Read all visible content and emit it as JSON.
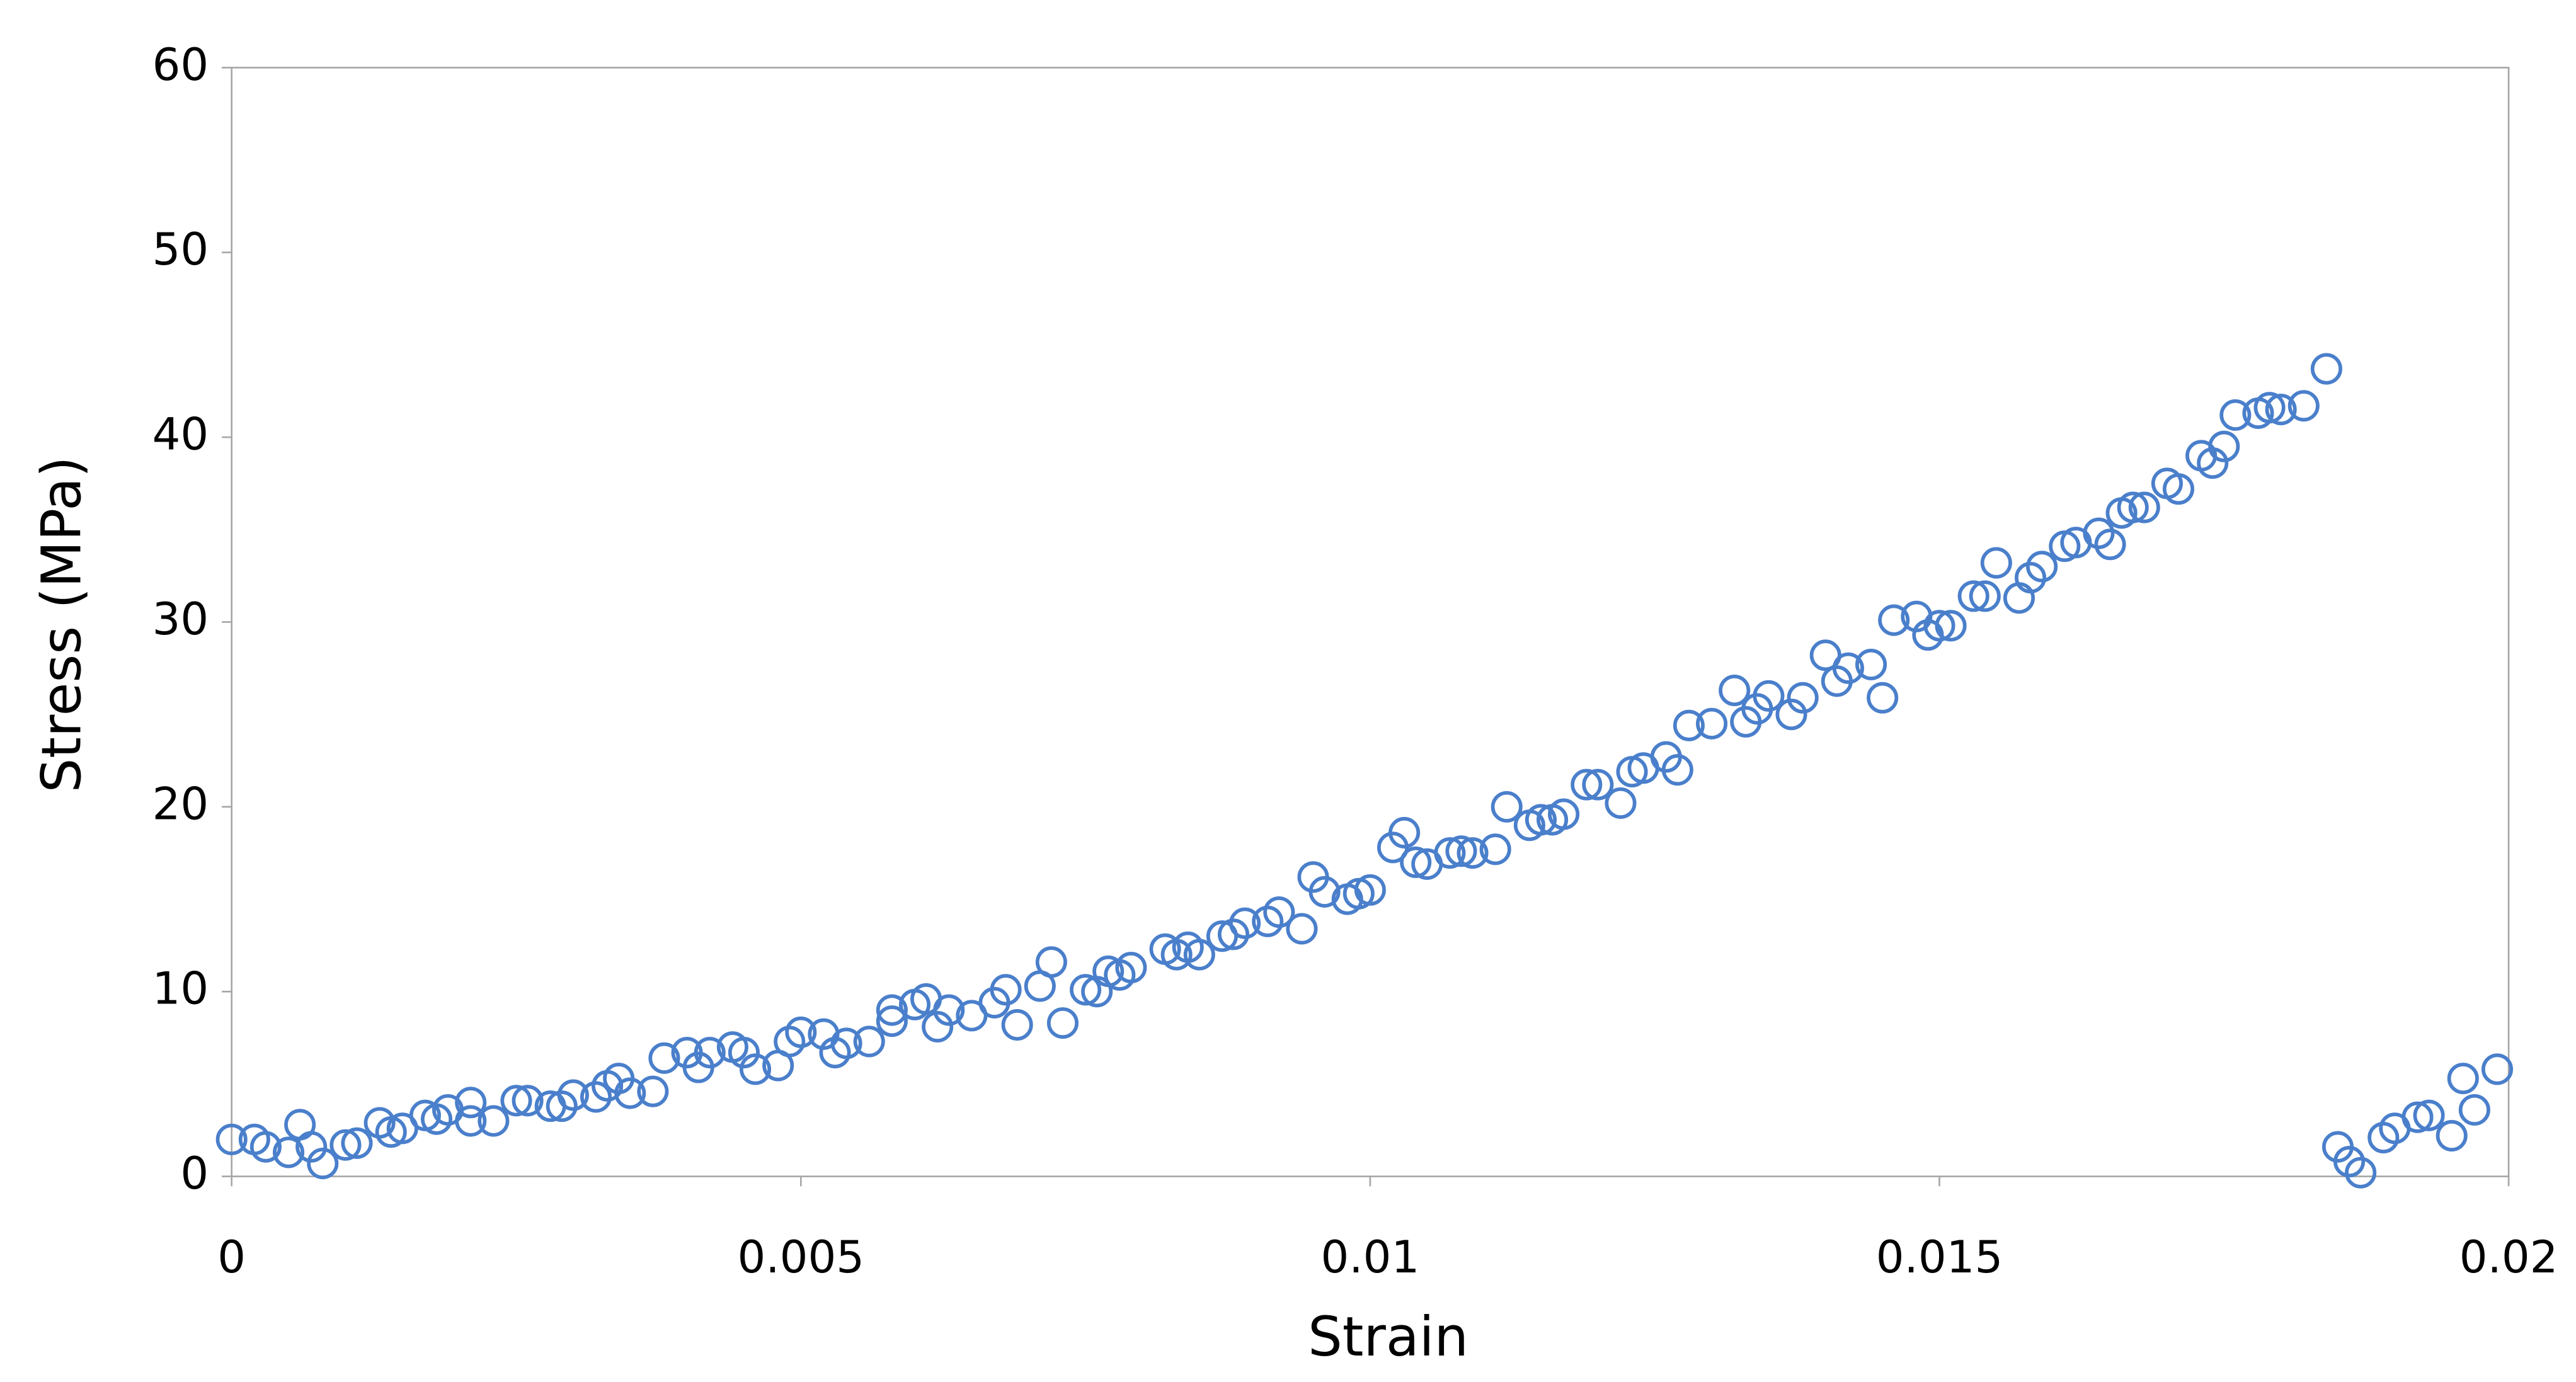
{
  "chart_data": {
    "type": "scatter",
    "x_label": "Strain",
    "y_label": "Stress (MPa)",
    "xlim": [
      0,
      0.02
    ],
    "ylim": [
      0,
      60
    ],
    "xticks": [
      0,
      0.005,
      0.01,
      0.015,
      0.02
    ],
    "yticks": [
      0,
      10,
      20,
      30,
      40,
      50,
      60
    ],
    "grid": false,
    "series": [
      {
        "color": "#4a7fcb",
        "x": [
          0.0,
          0.0002,
          0.0003,
          0.0005,
          0.0006,
          0.0007,
          0.0008,
          0.001,
          0.0011,
          0.0013,
          0.0014,
          0.0015,
          0.0017,
          0.0018,
          0.0019,
          0.0021,
          0.0021,
          0.0023,
          0.0025,
          0.0026,
          0.0028,
          0.0029,
          0.003,
          0.0032,
          0.0033,
          0.0034,
          0.0035,
          0.0037,
          0.0038,
          0.004,
          0.0041,
          0.0042,
          0.0044,
          0.0045,
          0.0046,
          0.0048,
          0.0049,
          0.005,
          0.0052,
          0.0053,
          0.0054,
          0.0056,
          0.0058,
          0.0058,
          0.006,
          0.0061,
          0.0062,
          0.0063,
          0.0065,
          0.0067,
          0.0068,
          0.0069,
          0.0071,
          0.0072,
          0.0073,
          0.0075,
          0.0076,
          0.0077,
          0.0078,
          0.0079,
          0.0082,
          0.0083,
          0.0084,
          0.0085,
          0.0087,
          0.0088,
          0.0089,
          0.0091,
          0.0092,
          0.0094,
          0.0095,
          0.0096,
          0.0098,
          0.0099,
          0.01,
          0.0102,
          0.0103,
          0.0104,
          0.0105,
          0.0107,
          0.0108,
          0.0109,
          0.0111,
          0.0112,
          0.0114,
          0.0115,
          0.0116,
          0.0117,
          0.0119,
          0.012,
          0.0122,
          0.0123,
          0.0124,
          0.0126,
          0.0127,
          0.0128,
          0.013,
          0.0132,
          0.0133,
          0.0134,
          0.0135,
          0.0137,
          0.0138,
          0.014,
          0.0141,
          0.0142,
          0.0144,
          0.0145,
          0.0146,
          0.0148,
          0.0149,
          0.015,
          0.0151,
          0.0153,
          0.0154,
          0.0155,
          0.0157,
          0.0158,
          0.0159,
          0.0161,
          0.0162,
          0.0164,
          0.0165,
          0.0166,
          0.0167,
          0.0168,
          0.017,
          0.0171,
          0.0173,
          0.0174,
          0.0175,
          0.0176,
          0.0178,
          0.0179,
          0.018,
          0.0182,
          0.0184,
          0.0185,
          0.0186,
          0.0187,
          0.0189,
          0.019,
          0.0192,
          0.0193,
          0.0195,
          0.0196,
          0.0197,
          0.0199
        ],
        "y": [
          2.0,
          2.0,
          1.6,
          1.3,
          2.8,
          1.6,
          0.7,
          1.7,
          1.8,
          2.9,
          2.4,
          2.6,
          3.3,
          3.1,
          3.6,
          4.0,
          3.0,
          3.0,
          4.1,
          4.1,
          3.8,
          3.8,
          4.4,
          4.3,
          4.9,
          5.3,
          4.5,
          4.6,
          6.4,
          6.7,
          5.9,
          6.7,
          7.0,
          6.7,
          5.8,
          6.0,
          7.3,
          7.8,
          7.7,
          6.7,
          7.2,
          7.3,
          8.4,
          9.0,
          9.3,
          9.6,
          8.1,
          9.0,
          8.7,
          9.4,
          10.1,
          8.2,
          10.3,
          11.6,
          8.3,
          10.1,
          10.0,
          11.1,
          10.9,
          11.3,
          12.3,
          12.0,
          12.4,
          12.0,
          13.0,
          13.1,
          13.7,
          13.8,
          14.3,
          13.4,
          16.2,
          15.4,
          15.0,
          15.3,
          15.5,
          17.8,
          18.6,
          17.0,
          16.9,
          17.5,
          17.6,
          17.5,
          17.7,
          20.0,
          19.0,
          19.3,
          19.3,
          19.6,
          21.2,
          21.2,
          20.2,
          21.9,
          22.1,
          22.7,
          22.0,
          24.4,
          24.5,
          26.3,
          24.6,
          25.3,
          26.0,
          25.0,
          25.9,
          28.2,
          26.8,
          27.5,
          27.7,
          25.9,
          30.1,
          30.3,
          29.3,
          29.8,
          29.8,
          31.4,
          31.4,
          33.2,
          31.3,
          32.4,
          33.0,
          34.1,
          34.3,
          34.8,
          34.2,
          35.9,
          36.2,
          36.2,
          37.5,
          37.2,
          39.0,
          38.6,
          39.5,
          41.2,
          41.3,
          41.6,
          41.5,
          41.7,
          43.7,
          1.6,
          0.8,
          0.2,
          2.1,
          2.6,
          3.2,
          3.3,
          2.2,
          5.3,
          3.6,
          5.8
        ]
      }
    ]
  }
}
